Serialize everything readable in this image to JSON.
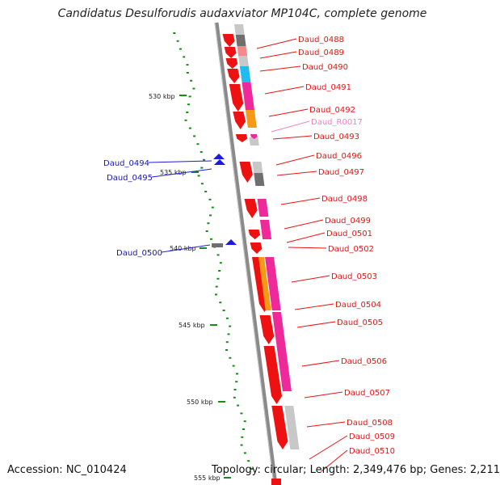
{
  "title": "Candidatus Desulforudis audaxviator MP104C, complete genome",
  "footer": {
    "accession": "Accession: NC_010424",
    "topology": "Topology: circular; Length: 2,349,476 bp; Genes: 2,211"
  },
  "colors": {
    "red": "#ee1111",
    "pink": "#ee2a9a",
    "orange": "#f59a16",
    "cyan": "#22bbee",
    "light_gray": "#c8c8c8",
    "dark_gray": "#6f6f6f",
    "salmon": "#f58a8a",
    "blue": "#1b1bdd",
    "green": "#1a8a1a"
  },
  "scale_labels": [
    {
      "text": "530 kbp",
      "kbp": 530
    },
    {
      "text": "535 kbp",
      "kbp": 535
    },
    {
      "text": "540 kbp",
      "kbp": 540
    },
    {
      "text": "545 kbp",
      "kbp": 545
    },
    {
      "text": "550 kbp",
      "kbp": 550
    },
    {
      "text": "555 kbp",
      "kbp": 555
    }
  ],
  "gene_labels_right": [
    {
      "name": "Daud_0488",
      "color": "red"
    },
    {
      "name": "Daud_0489",
      "color": "red"
    },
    {
      "name": "Daud_0490",
      "color": "red"
    },
    {
      "name": "Daud_0491",
      "color": "red"
    },
    {
      "name": "Daud_0492",
      "color": "red"
    },
    {
      "name": "Daud_R0017",
      "color": "pink"
    },
    {
      "name": "Daud_0493",
      "color": "red"
    },
    {
      "name": "Daud_0496",
      "color": "red"
    },
    {
      "name": "Daud_0497",
      "color": "red"
    },
    {
      "name": "Daud_0498",
      "color": "red"
    },
    {
      "name": "Daud_0499",
      "color": "red"
    },
    {
      "name": "Daud_0501",
      "color": "red"
    },
    {
      "name": "Daud_0502",
      "color": "red"
    },
    {
      "name": "Daud_0503",
      "color": "red"
    },
    {
      "name": "Daud_0504",
      "color": "red"
    },
    {
      "name": "Daud_0505",
      "color": "red"
    },
    {
      "name": "Daud_0506",
      "color": "red"
    },
    {
      "name": "Daud_0507",
      "color": "red"
    },
    {
      "name": "Daud_0508",
      "color": "red"
    },
    {
      "name": "Daud_0509",
      "color": "red"
    },
    {
      "name": "Daud_0510",
      "color": "red"
    }
  ],
  "gene_labels_left": [
    {
      "name": "Daud_0494",
      "color": "blue"
    },
    {
      "name": "Daud_0495",
      "color": "blue"
    },
    {
      "name": "Daud_0500",
      "color": "blue"
    }
  ]
}
